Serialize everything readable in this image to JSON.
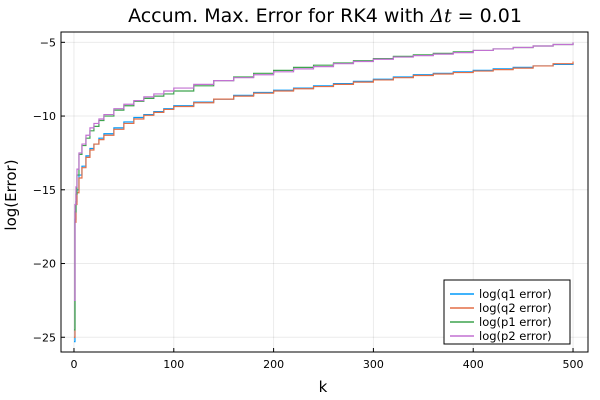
{
  "chart_data": {
    "type": "line",
    "title_prefix": "Accum. Max. Error for RK4 with ",
    "title_math": "Δt",
    "title_suffix": " = 0.01",
    "xlabel": "k",
    "ylabel": "log(Error)",
    "xlim": [
      -13,
      515
    ],
    "ylim": [
      -26.0,
      -4.3
    ],
    "xticks": [
      0,
      100,
      200,
      300,
      400,
      500
    ],
    "yticks": [
      -25,
      -20,
      -15,
      -10,
      -5
    ],
    "grid": true,
    "legend_position": "bottom-right",
    "step": true,
    "series": [
      {
        "name": "log(q1 error)",
        "color": "#009AFA",
        "x": [
          0,
          1,
          2,
          3,
          5,
          8,
          12,
          16,
          20,
          25,
          30,
          40,
          50,
          60,
          70,
          80,
          90,
          100,
          120,
          140,
          160,
          180,
          200,
          220,
          240,
          260,
          280,
          300,
          320,
          340,
          360,
          380,
          400,
          420,
          440,
          460,
          480,
          500
        ],
        "y": [
          -25.3,
          -17.0,
          -15.8,
          -15.0,
          -14.0,
          -13.4,
          -12.7,
          -12.2,
          -11.9,
          -11.5,
          -11.2,
          -10.8,
          -10.4,
          -10.1,
          -9.9,
          -9.7,
          -9.5,
          -9.3,
          -9.05,
          -8.85,
          -8.6,
          -8.4,
          -8.25,
          -8.1,
          -7.95,
          -7.8,
          -7.65,
          -7.5,
          -7.35,
          -7.2,
          -7.1,
          -7.0,
          -6.9,
          -6.8,
          -6.7,
          -6.6,
          -6.5,
          -6.4
        ]
      },
      {
        "name": "log(q2 error)",
        "color": "#E36F47",
        "x": [
          0,
          1,
          2,
          3,
          5,
          8,
          12,
          16,
          20,
          25,
          30,
          40,
          50,
          60,
          70,
          80,
          90,
          100,
          120,
          140,
          160,
          180,
          200,
          220,
          240,
          260,
          280,
          300,
          320,
          340,
          360,
          380,
          400,
          420,
          440,
          460,
          480,
          500
        ],
        "y": [
          -25.0,
          -17.2,
          -16.0,
          -15.2,
          -14.2,
          -13.5,
          -12.8,
          -12.3,
          -11.9,
          -11.6,
          -11.3,
          -10.9,
          -10.5,
          -10.2,
          -9.95,
          -9.75,
          -9.55,
          -9.35,
          -9.1,
          -8.85,
          -8.65,
          -8.45,
          -8.3,
          -8.15,
          -8.0,
          -7.85,
          -7.7,
          -7.55,
          -7.4,
          -7.25,
          -7.15,
          -7.05,
          -6.95,
          -6.85,
          -6.75,
          -6.6,
          -6.45,
          -6.3
        ]
      },
      {
        "name": "log(p1 error)",
        "color": "#3EA44E",
        "x": [
          0,
          1,
          2,
          3,
          5,
          8,
          12,
          16,
          20,
          25,
          30,
          40,
          50,
          60,
          70,
          80,
          90,
          100,
          120,
          140,
          160,
          180,
          200,
          220,
          240,
          260,
          280,
          300,
          320,
          340,
          360,
          380,
          400,
          420,
          440,
          460,
          480,
          500
        ],
        "y": [
          -24.5,
          -16.5,
          -15.3,
          -14.0,
          -12.6,
          -12.0,
          -11.5,
          -11.0,
          -10.7,
          -10.3,
          -10.0,
          -9.6,
          -9.3,
          -9.0,
          -8.8,
          -8.65,
          -8.5,
          -8.3,
          -7.95,
          -7.6,
          -7.35,
          -7.1,
          -6.9,
          -6.7,
          -6.55,
          -6.4,
          -6.25,
          -6.1,
          -5.95,
          -5.85,
          -5.75,
          -5.65,
          -5.55,
          -5.45,
          -5.35,
          -5.25,
          -5.15,
          -5.05
        ]
      },
      {
        "name": "log(p2 error)",
        "color": "#C271D2",
        "x": [
          0,
          1,
          2,
          3,
          5,
          8,
          12,
          16,
          20,
          25,
          30,
          40,
          50,
          60,
          70,
          80,
          90,
          100,
          120,
          140,
          160,
          180,
          200,
          220,
          240,
          260,
          280,
          300,
          320,
          340,
          360,
          380,
          400,
          420,
          440,
          460,
          480,
          500
        ],
        "y": [
          -22.5,
          -16.0,
          -14.8,
          -13.6,
          -12.5,
          -11.9,
          -11.3,
          -10.8,
          -10.5,
          -10.2,
          -9.9,
          -9.5,
          -9.2,
          -8.95,
          -8.7,
          -8.5,
          -8.3,
          -8.1,
          -7.85,
          -7.6,
          -7.4,
          -7.2,
          -7.0,
          -6.8,
          -6.65,
          -6.45,
          -6.3,
          -6.15,
          -6.0,
          -5.9,
          -5.8,
          -5.7,
          -5.55,
          -5.45,
          -5.35,
          -5.25,
          -5.15,
          -5.0
        ]
      }
    ]
  }
}
